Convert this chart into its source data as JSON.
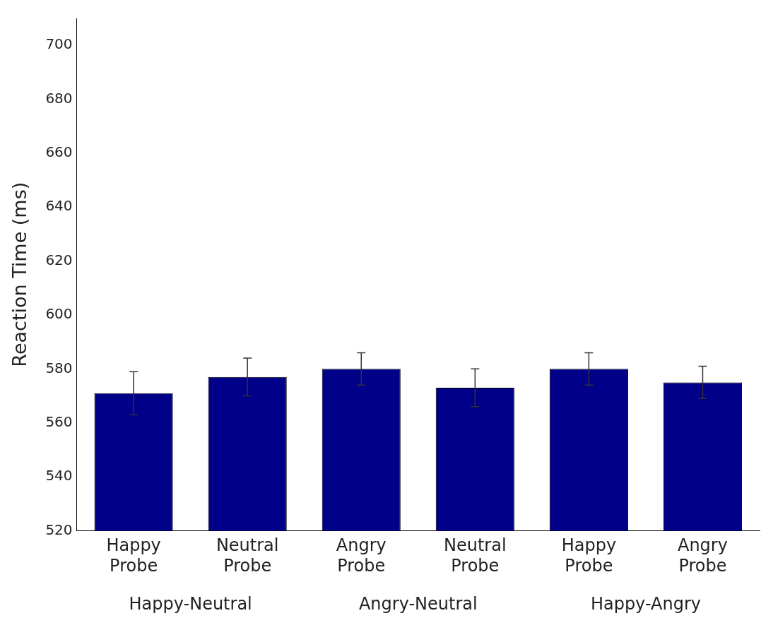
{
  "chart_data": {
    "type": "bar",
    "ylabel": "Reaction Time (ms)",
    "categories": [
      "Happy\nProbe",
      "Neutral\nProbe",
      "Angry\nProbe",
      "Neutral\nProbe",
      "Happy\nProbe",
      "Angry\nProbe"
    ],
    "values": [
      571,
      577,
      580,
      573,
      580,
      575
    ],
    "errors": [
      8,
      7,
      6,
      7,
      6,
      6
    ],
    "color": "#000088",
    "ylim": [
      520,
      710
    ],
    "yticks": [
      520,
      540,
      560,
      580,
      600,
      620,
      640,
      660,
      680,
      700
    ],
    "annotations": [
      "Happy-Neutral",
      "Angry-Neutral",
      "Happy-Angry"
    ]
  }
}
